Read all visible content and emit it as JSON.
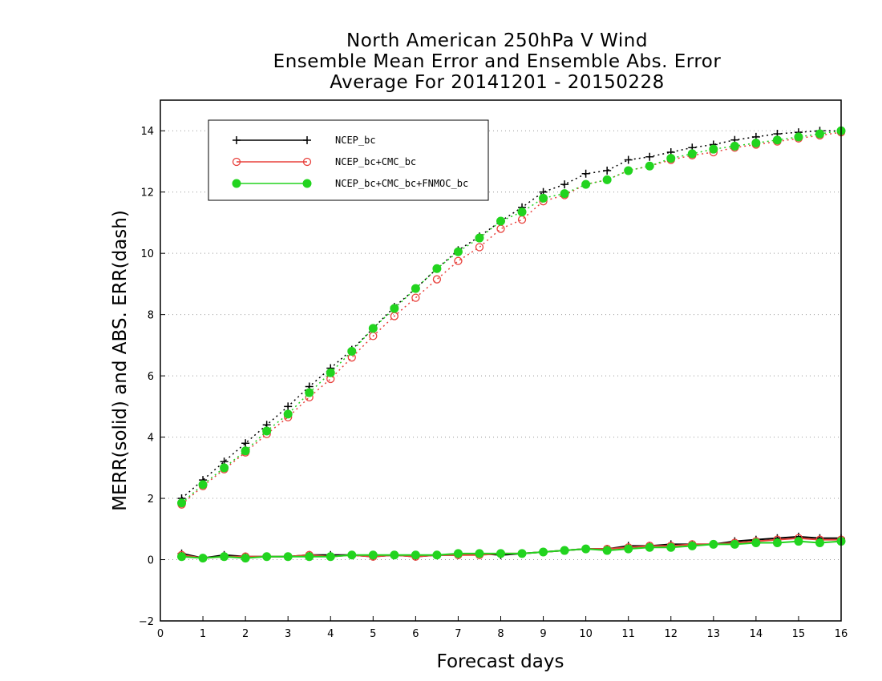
{
  "chart_data": {
    "type": "line",
    "title_lines": [
      "North American 250hPa V Wind",
      "Ensemble Mean Error and Ensemble Abs. Error",
      "Average For 20141201 - 20150228"
    ],
    "xlabel": "Forecast days",
    "ylabel": "MERR(solid) and ABS. ERR(dash)",
    "xlim": [
      0,
      16
    ],
    "ylim": [
      -2,
      15
    ],
    "xticks": [
      "0",
      "1",
      "2",
      "3",
      "4",
      "5",
      "6",
      "7",
      "8",
      "9",
      "10",
      "11",
      "12",
      "13",
      "14",
      "15",
      "16"
    ],
    "yticks": [
      "−2",
      "0",
      "2",
      "4",
      "6",
      "8",
      "10",
      "12",
      "14"
    ],
    "grid": "horizontal dotted",
    "legend_position": "top-left",
    "x": [
      0.5,
      1,
      1.5,
      2,
      2.5,
      3,
      3.5,
      4,
      4.5,
      5,
      5.5,
      6,
      6.5,
      7,
      7.5,
      8,
      8.5,
      9,
      9.5,
      10,
      10.5,
      11,
      11.5,
      12,
      12.5,
      13,
      13.5,
      14,
      14.5,
      15,
      15.5,
      16
    ],
    "series": [
      {
        "name": "NCEP_bc",
        "color": "#000000",
        "marker": "plus",
        "abs_err": [
          2.0,
          2.6,
          3.2,
          3.8,
          4.4,
          5.0,
          5.65,
          6.25,
          6.85,
          7.55,
          8.25,
          8.85,
          9.5,
          10.1,
          10.55,
          11.05,
          11.5,
          12.0,
          12.25,
          12.6,
          12.7,
          13.05,
          13.15,
          13.3,
          13.45,
          13.55,
          13.7,
          13.8,
          13.9,
          13.95,
          14.0,
          14.0
        ],
        "mean_err": [
          0.2,
          0.05,
          0.15,
          0.1,
          0.1,
          0.1,
          0.15,
          0.15,
          0.15,
          0.1,
          0.15,
          0.1,
          0.15,
          0.15,
          0.2,
          0.15,
          0.2,
          0.25,
          0.3,
          0.35,
          0.35,
          0.45,
          0.45,
          0.5,
          0.5,
          0.5,
          0.6,
          0.65,
          0.7,
          0.75,
          0.7,
          0.7
        ]
      },
      {
        "name": "NCEP_bc+CMC_bc",
        "color": "#e8413c",
        "marker": "open-circle",
        "abs_err": [
          1.8,
          2.4,
          2.95,
          3.5,
          4.1,
          4.65,
          5.3,
          5.9,
          6.6,
          7.3,
          7.95,
          8.55,
          9.15,
          9.75,
          10.2,
          10.8,
          11.1,
          11.7,
          11.9,
          12.25,
          12.4,
          12.7,
          12.85,
          13.05,
          13.2,
          13.3,
          13.45,
          13.55,
          13.65,
          13.75,
          13.85,
          13.95
        ],
        "mean_err": [
          0.15,
          0.05,
          0.1,
          0.1,
          0.1,
          0.1,
          0.15,
          0.1,
          0.15,
          0.1,
          0.15,
          0.1,
          0.15,
          0.15,
          0.15,
          0.2,
          0.2,
          0.25,
          0.3,
          0.35,
          0.35,
          0.4,
          0.45,
          0.45,
          0.5,
          0.5,
          0.55,
          0.6,
          0.65,
          0.7,
          0.65,
          0.65
        ]
      },
      {
        "name": "NCEP_bc+CMC_bc+FNMOC_bc",
        "color": "#22d41f",
        "marker": "filled-circle",
        "abs_err": [
          1.85,
          2.45,
          3.0,
          3.55,
          4.2,
          4.75,
          5.45,
          6.1,
          6.8,
          7.55,
          8.2,
          8.85,
          9.5,
          10.05,
          10.5,
          11.05,
          11.35,
          11.8,
          11.95,
          12.25,
          12.4,
          12.7,
          12.85,
          13.1,
          13.25,
          13.4,
          13.5,
          13.6,
          13.7,
          13.8,
          13.9,
          14.0
        ],
        "mean_err": [
          0.1,
          0.05,
          0.1,
          0.05,
          0.1,
          0.1,
          0.1,
          0.1,
          0.15,
          0.15,
          0.15,
          0.15,
          0.15,
          0.2,
          0.2,
          0.2,
          0.2,
          0.25,
          0.3,
          0.35,
          0.3,
          0.35,
          0.4,
          0.4,
          0.45,
          0.5,
          0.5,
          0.55,
          0.55,
          0.6,
          0.55,
          0.6
        ]
      }
    ]
  }
}
